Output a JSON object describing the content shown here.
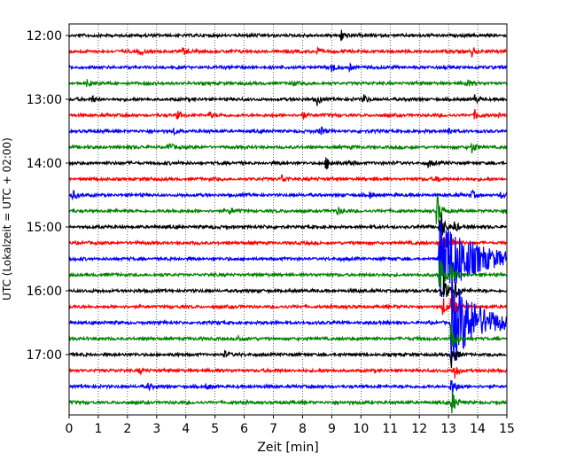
{
  "chart_data": {
    "type": "line",
    "title": "",
    "xlabel": "Zeit  [min]",
    "ylabel": "UTC (Lokalzeit = UTC + 02:00)",
    "xlim": [
      0,
      15
    ],
    "x_ticks": [
      "0",
      "1",
      "2",
      "3",
      "4",
      "5",
      "6",
      "7",
      "8",
      "9",
      "10",
      "11",
      "12",
      "13",
      "14",
      "15"
    ],
    "y_ticks": [
      "12:00",
      "13:00",
      "14:00",
      "15:00",
      "16:00",
      "17:00"
    ],
    "grid": "vertical dotted",
    "trace_interval_min": 15,
    "colors": [
      "#000000",
      "#ff0000",
      "#0000ff",
      "#008000"
    ],
    "traces": [
      {
        "start": "12:00",
        "color": "#000000",
        "events": [
          {
            "t": 9.3,
            "amp": 0.45
          }
        ]
      },
      {
        "start": "12:15",
        "color": "#ff0000",
        "events": [
          {
            "t": 2.4,
            "amp": 0.2
          },
          {
            "t": 3.9,
            "amp": 0.2
          },
          {
            "t": 8.5,
            "amp": 0.25
          },
          {
            "t": 13.8,
            "amp": 0.3
          }
        ]
      },
      {
        "start": "12:30",
        "color": "#0000ff",
        "events": [
          {
            "t": 9.0,
            "amp": 0.3
          },
          {
            "t": 9.6,
            "amp": 0.2
          }
        ]
      },
      {
        "start": "12:45",
        "color": "#008000",
        "events": [
          {
            "t": 0.6,
            "amp": 0.2
          },
          {
            "t": 7.6,
            "amp": 0.2
          },
          {
            "t": 13.6,
            "amp": 0.3
          }
        ]
      },
      {
        "start": "13:00",
        "color": "#000000",
        "events": [
          {
            "t": 0.8,
            "amp": 0.2
          },
          {
            "t": 8.5,
            "amp": 0.35
          },
          {
            "t": 10.1,
            "amp": 0.25
          },
          {
            "t": 13.9,
            "amp": 0.3
          }
        ]
      },
      {
        "start": "13:15",
        "color": "#ff0000",
        "events": [
          {
            "t": 3.7,
            "amp": 0.25
          },
          {
            "t": 4.8,
            "amp": 0.2
          },
          {
            "t": 8.0,
            "amp": 0.25
          },
          {
            "t": 13.9,
            "amp": 0.3
          }
        ]
      },
      {
        "start": "13:30",
        "color": "#0000ff",
        "events": [
          {
            "t": 3.6,
            "amp": 0.2
          },
          {
            "t": 8.6,
            "amp": 0.3
          },
          {
            "t": 13.0,
            "amp": 0.3
          }
        ]
      },
      {
        "start": "13:45",
        "color": "#008000",
        "events": [
          {
            "t": 3.4,
            "amp": 0.35
          },
          {
            "t": 13.8,
            "amp": 0.35
          }
        ]
      },
      {
        "start": "14:00",
        "color": "#000000",
        "events": [
          {
            "t": 8.8,
            "amp": 0.4
          },
          {
            "t": 9.6,
            "amp": 0.2
          },
          {
            "t": 12.3,
            "amp": 0.25
          }
        ]
      },
      {
        "start": "14:15",
        "color": "#ff0000",
        "events": [
          {
            "t": 7.3,
            "amp": 0.3
          },
          {
            "t": 12.6,
            "amp": 0.2
          }
        ]
      },
      {
        "start": "14:30",
        "color": "#0000ff",
        "events": [
          {
            "t": 0.1,
            "amp": 0.35
          },
          {
            "t": 10.3,
            "amp": 0.2
          },
          {
            "t": 13.8,
            "amp": 0.25
          },
          {
            "t": 14.8,
            "amp": 0.2
          }
        ]
      },
      {
        "start": "14:45",
        "color": "#008000",
        "events": [
          {
            "t": 5.5,
            "amp": 0.2
          },
          {
            "t": 9.2,
            "amp": 0.2
          },
          {
            "t": 12.6,
            "amp": 1.2
          }
        ]
      },
      {
        "start": "15:00",
        "color": "#000000",
        "events": [
          {
            "t": 12.7,
            "amp": 1.3
          },
          {
            "t": 13.2,
            "amp": 0.4
          }
        ]
      },
      {
        "start": "15:15",
        "color": "#ff0000",
        "events": [
          {
            "t": 12.7,
            "amp": 1.4
          },
          {
            "t": 13.1,
            "amp": 0.5
          }
        ]
      },
      {
        "start": "15:30",
        "color": "#0000ff",
        "events": [
          {
            "t": 12.7,
            "amp": 2.8,
            "decay": 1.1
          }
        ]
      },
      {
        "start": "15:45",
        "color": "#008000",
        "events": [
          {
            "t": 12.7,
            "amp": 1.5
          },
          {
            "t": 13.1,
            "amp": 0.8
          }
        ]
      },
      {
        "start": "16:00",
        "color": "#000000",
        "events": [
          {
            "t": 12.8,
            "amp": 1.2
          },
          {
            "t": 13.2,
            "amp": 0.8
          }
        ]
      },
      {
        "start": "16:15",
        "color": "#ff0000",
        "events": [
          {
            "t": 12.8,
            "amp": 0.6
          },
          {
            "t": 13.1,
            "amp": 1.2
          }
        ]
      },
      {
        "start": "16:30",
        "color": "#0000ff",
        "events": [
          {
            "t": 13.1,
            "amp": 2.8,
            "decay": 0.9
          }
        ]
      },
      {
        "start": "16:45",
        "color": "#008000",
        "events": [
          {
            "t": 5.8,
            "amp": 0.2
          },
          {
            "t": 13.1,
            "amp": 1.2
          }
        ]
      },
      {
        "start": "17:00",
        "color": "#000000",
        "events": [
          {
            "t": 5.3,
            "amp": 0.2
          },
          {
            "t": 13.1,
            "amp": 0.8
          }
        ]
      },
      {
        "start": "17:15",
        "color": "#ff0000",
        "events": [
          {
            "t": 2.4,
            "amp": 0.2
          },
          {
            "t": 13.2,
            "amp": 0.5
          }
        ]
      },
      {
        "start": "17:30",
        "color": "#0000ff",
        "events": [
          {
            "t": 2.7,
            "amp": 0.2
          },
          {
            "t": 4.7,
            "amp": 0.2
          },
          {
            "t": 13.1,
            "amp": 0.7
          }
        ]
      },
      {
        "start": "17:45",
        "color": "#008000",
        "events": [
          {
            "t": 13.1,
            "amp": 0.9
          }
        ]
      }
    ]
  }
}
